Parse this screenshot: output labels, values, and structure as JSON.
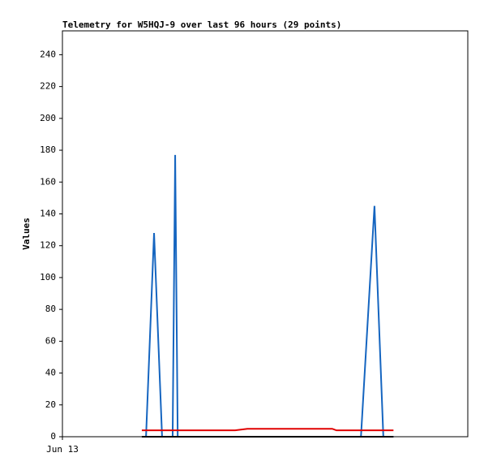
{
  "chart_data": {
    "type": "line",
    "title": "Telemetry for W5HQJ-9 over last 96 hours (29 points)",
    "y_label": "Values",
    "x": [
      18.8,
      19.8,
      21.7,
      23.6,
      25.2,
      26.1,
      26.7,
      27.3,
      29.4,
      32.3,
      35.1,
      38.0,
      40.9,
      43.8,
      46.7,
      49.5,
      52.4,
      55.3,
      58.2,
      61.1,
      63.9,
      64.9,
      67.8,
      70.7,
      73.9,
      76.0,
      77.0,
      77.8,
      78.4
    ],
    "series": [
      {
        "color": "#1565c0",
        "values": [
          0,
          0,
          128,
          0,
          0,
          0,
          177,
          0,
          0,
          0,
          0,
          0,
          0,
          0,
          0,
          0,
          0,
          0,
          0,
          0,
          0,
          0,
          0,
          0,
          145,
          0,
          0,
          0,
          0
        ]
      },
      {
        "color": "#e00000",
        "values": [
          4,
          4,
          4,
          4,
          4,
          4,
          4,
          4,
          4,
          4,
          4,
          4,
          4,
          5,
          5,
          5,
          5,
          5,
          5,
          5,
          5,
          4,
          4,
          4,
          4,
          4,
          4,
          4,
          4
        ]
      },
      {
        "color": "#000000",
        "values": [
          0,
          0,
          0,
          0,
          0,
          0,
          0,
          0,
          0,
          0,
          0,
          0,
          0,
          0,
          0,
          0,
          0,
          0,
          0,
          0,
          0,
          0,
          0,
          0,
          0,
          0,
          0,
          0,
          0
        ]
      }
    ],
    "xlim": [
      0,
      96
    ],
    "xticks": [
      {
        "value": 0,
        "label": "Jun 13"
      }
    ],
    "ylim": [
      0,
      255
    ],
    "yticks": [
      0,
      20,
      40,
      60,
      80,
      100,
      120,
      140,
      160,
      180,
      200,
      220,
      240
    ],
    "grid": false
  }
}
